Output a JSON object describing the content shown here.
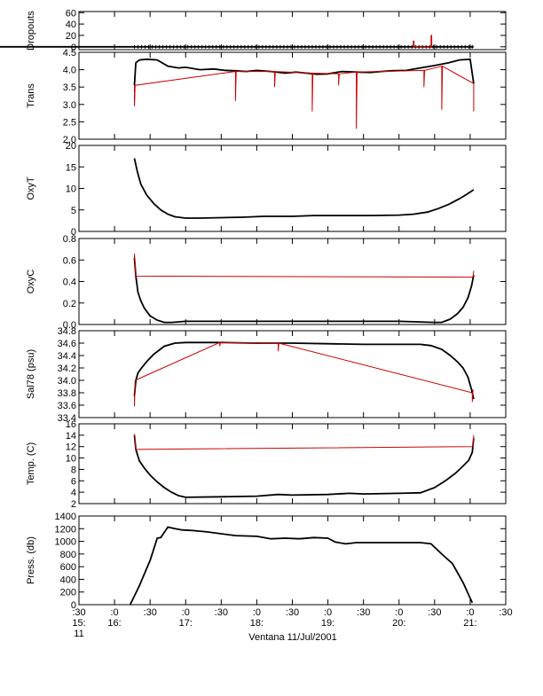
{
  "chart_data": [
    {
      "type": "line",
      "ylabel": "Dropouts",
      "ylim": [
        -5,
        62
      ],
      "yticks": [
        0,
        20,
        40,
        60
      ],
      "yticklabels": [
        "0",
        "20",
        "40",
        "60"
      ],
      "x_ticks_minor_ylim": [
        -6,
        6
      ],
      "series": [
        {
          "color": "#000000",
          "x": [
            13.2,
            21.05
          ],
          "y": [
            0,
            0
          ]
        },
        {
          "color": "#cc0000",
          "x": [
            20.2,
            20.2,
            20.21,
            20.21,
            20.45,
            20.45,
            20.46,
            20.46
          ],
          "y": [
            0,
            10,
            10,
            0,
            0,
            20,
            20,
            0
          ]
        }
      ]
    },
    {
      "type": "line",
      "ylabel": "Trans",
      "ylim": [
        2.0,
        4.5
      ],
      "yticks": [
        2.0,
        2.5,
        3.0,
        3.5,
        4.0,
        4.5
      ],
      "yticklabels": [
        "2.0",
        "2.5",
        "3.0",
        "3.5",
        "4.0",
        "4.5"
      ],
      "series": [
        {
          "color": "#000000",
          "x": [
            16.28,
            16.3,
            16.35,
            16.45,
            16.6,
            16.75,
            16.9,
            17.0,
            17.2,
            17.4,
            17.55,
            17.7,
            17.85,
            18.0,
            18.2,
            18.4,
            18.55,
            18.7,
            18.85,
            19.0,
            19.2,
            19.4,
            19.6,
            19.75,
            19.9,
            20.1,
            20.3,
            20.5,
            20.7,
            20.85,
            21.0,
            21.05
          ],
          "y": [
            3.55,
            4.2,
            4.28,
            4.3,
            4.28,
            4.1,
            4.05,
            4.07,
            4.0,
            4.02,
            3.98,
            3.97,
            3.95,
            3.98,
            3.95,
            3.9,
            3.93,
            3.9,
            3.87,
            3.88,
            3.95,
            3.93,
            3.92,
            3.95,
            3.97,
            3.98,
            4.05,
            4.12,
            4.2,
            4.28,
            4.3,
            3.6
          ]
        },
        {
          "color": "#cc0000",
          "x": [
            16.28,
            16.28,
            16.29,
            17.7,
            17.7,
            17.71,
            18.25,
            18.25,
            18.26,
            18.78,
            18.78,
            18.79,
            19.15,
            19.15,
            19.16,
            19.4,
            19.4,
            19.41,
            20.35,
            20.35,
            20.36,
            20.6,
            20.6,
            20.61,
            21.05,
            21.05
          ],
          "y": [
            3.55,
            2.95,
            3.55,
            3.95,
            3.1,
            3.95,
            3.95,
            3.5,
            3.95,
            3.9,
            2.8,
            3.9,
            3.88,
            3.55,
            3.88,
            3.93,
            2.3,
            3.93,
            3.98,
            3.5,
            3.98,
            4.1,
            2.85,
            4.1,
            3.6,
            2.8
          ]
        }
      ]
    },
    {
      "type": "line",
      "ylabel": "OxyT",
      "ylim": [
        0,
        20
      ],
      "yticks": [
        0,
        5,
        10,
        15,
        20
      ],
      "yticklabels": [
        "0",
        "5",
        "10",
        "15",
        "20"
      ],
      "series": [
        {
          "color": "#000000",
          "x": [
            16.28,
            16.32,
            16.37,
            16.45,
            16.55,
            16.65,
            16.75,
            16.85,
            17.0,
            17.2,
            17.5,
            17.8,
            18.1,
            18.5,
            18.8,
            19.2,
            19.6,
            20.0,
            20.2,
            20.4,
            20.55,
            20.7,
            20.85,
            20.95,
            21.05
          ],
          "y": [
            17.0,
            14.0,
            11.0,
            8.5,
            6.5,
            5.0,
            4.0,
            3.4,
            3.1,
            3.1,
            3.2,
            3.3,
            3.5,
            3.5,
            3.7,
            3.7,
            3.7,
            3.8,
            4.0,
            4.5,
            5.3,
            6.3,
            7.6,
            8.6,
            9.7
          ]
        }
      ]
    },
    {
      "type": "line",
      "ylabel": "OxyC",
      "ylim": [
        0.0,
        0.8
      ],
      "yticks": [
        0.0,
        0.2,
        0.4,
        0.6,
        0.8
      ],
      "yticklabels": [
        "0.0",
        "0.2",
        "0.4",
        "0.6",
        "0.8"
      ],
      "series": [
        {
          "color": "#000000",
          "x": [
            16.28,
            16.3,
            16.33,
            16.37,
            16.42,
            16.5,
            16.6,
            16.7,
            16.8,
            17.0,
            17.5,
            18.0,
            18.5,
            19.0,
            19.5,
            20.0,
            20.5,
            20.6,
            20.72,
            20.82,
            20.9,
            20.97,
            21.02,
            21.05
          ],
          "y": [
            0.62,
            0.45,
            0.3,
            0.22,
            0.15,
            0.08,
            0.04,
            0.02,
            0.02,
            0.03,
            0.03,
            0.03,
            0.03,
            0.03,
            0.03,
            0.03,
            0.02,
            0.02,
            0.05,
            0.1,
            0.16,
            0.25,
            0.36,
            0.46
          ]
        },
        {
          "color": "#cc0000",
          "x": [
            16.28,
            16.28,
            16.3,
            21.04,
            21.05
          ],
          "y": [
            0.62,
            0.66,
            0.45,
            0.44,
            0.5
          ]
        }
      ]
    },
    {
      "type": "line",
      "ylabel": "Sal78 (psu)",
      "ylim": [
        33.4,
        34.8
      ],
      "yticks": [
        33.4,
        33.6,
        33.8,
        34.0,
        34.2,
        34.4,
        34.6,
        34.8
      ],
      "yticklabels": [
        "33.4",
        "33.6",
        "33.8",
        "34.0",
        "34.2",
        "34.4",
        "34.6",
        "34.8"
      ],
      "series": [
        {
          "color": "#000000",
          "x": [
            16.28,
            16.3,
            16.33,
            16.38,
            16.45,
            16.55,
            16.7,
            16.85,
            17.0,
            17.5,
            18.0,
            18.5,
            19.0,
            19.5,
            20.0,
            20.3,
            20.45,
            20.6,
            20.72,
            20.82,
            20.9,
            20.97,
            21.02,
            21.05
          ],
          "y": [
            33.75,
            34.0,
            34.12,
            34.2,
            34.3,
            34.42,
            34.55,
            34.6,
            34.61,
            34.61,
            34.6,
            34.6,
            34.59,
            34.58,
            34.58,
            34.58,
            34.56,
            34.5,
            34.4,
            34.3,
            34.2,
            34.05,
            33.85,
            33.7
          ]
        },
        {
          "color": "#cc0000",
          "x": [
            16.28,
            16.28,
            16.29,
            17.48,
            17.48,
            17.49,
            18.3,
            18.3,
            18.31,
            21.03,
            21.03,
            21.04
          ],
          "y": [
            33.75,
            33.58,
            34.0,
            34.61,
            34.55,
            34.61,
            34.6,
            34.47,
            34.6,
            33.8,
            33.65,
            33.85
          ]
        }
      ]
    },
    {
      "type": "line",
      "ylabel": "Temp. (C)",
      "ylim": [
        2,
        16
      ],
      "yticks": [
        2,
        4,
        6,
        8,
        10,
        12,
        14,
        16
      ],
      "yticklabels": [
        "2",
        "4",
        "6",
        "8",
        "10",
        "12",
        "14",
        "16"
      ],
      "series": [
        {
          "color": "#000000",
          "x": [
            16.28,
            16.3,
            16.35,
            16.42,
            16.5,
            16.6,
            16.7,
            16.8,
            16.9,
            17.0,
            17.5,
            18.0,
            18.3,
            18.5,
            19.0,
            19.3,
            19.5,
            20.0,
            20.3,
            20.5,
            20.65,
            20.8,
            20.9,
            20.98,
            21.03,
            21.05
          ],
          "y": [
            14.0,
            11.5,
            9.5,
            8.2,
            7.0,
            5.8,
            4.8,
            4.0,
            3.4,
            3.1,
            3.2,
            3.3,
            3.6,
            3.5,
            3.6,
            3.8,
            3.7,
            3.8,
            3.9,
            4.8,
            6.0,
            7.4,
            8.6,
            9.6,
            11.0,
            13.5
          ]
        },
        {
          "color": "#cc0000",
          "x": [
            16.28,
            16.28,
            16.3,
            21.04,
            21.05
          ],
          "y": [
            14.0,
            14.2,
            11.5,
            12.0,
            14.0
          ]
        }
      ]
    },
    {
      "type": "line",
      "ylabel": "Press. (db)",
      "ylim": [
        0,
        1400
      ],
      "yticks": [
        0,
        200,
        400,
        600,
        800,
        1000,
        1200,
        1400
      ],
      "yticklabels": [
        "0",
        "200",
        "400",
        "600",
        "800",
        "1000",
        "1200",
        "1400"
      ],
      "series": [
        {
          "color": "#000000",
          "x": [
            16.22,
            16.35,
            16.5,
            16.6,
            16.65,
            16.75,
            16.85,
            16.95,
            17.1,
            17.3,
            17.5,
            17.7,
            18.0,
            18.2,
            18.4,
            18.6,
            18.8,
            19.0,
            19.1,
            19.25,
            19.4,
            19.7,
            20.0,
            20.3,
            20.45,
            20.6,
            20.75,
            20.9,
            21.03
          ],
          "y": [
            0,
            300,
            700,
            1050,
            1060,
            1225,
            1200,
            1180,
            1170,
            1150,
            1120,
            1090,
            1080,
            1040,
            1050,
            1040,
            1060,
            1050,
            990,
            960,
            980,
            980,
            980,
            980,
            960,
            800,
            650,
            350,
            30
          ]
        }
      ]
    }
  ],
  "x_axis": {
    "xlim": [
      15.5,
      21.5
    ],
    "major_ticks": [
      {
        "x": 15.5,
        "label1": ":30",
        "label2": "15:",
        "label3": "11"
      },
      {
        "x": 16.0,
        "label1": ":0",
        "label2": "16:",
        "label3": ""
      },
      {
        "x": 16.5,
        "label1": ":30",
        "label2": "",
        "label3": ""
      },
      {
        "x": 17.0,
        "label1": ":0",
        "label2": "17:",
        "label3": ""
      },
      {
        "x": 17.5,
        "label1": ":30",
        "label2": "",
        "label3": ""
      },
      {
        "x": 18.0,
        "label1": ":0",
        "label2": "18:",
        "label3": ""
      },
      {
        "x": 18.5,
        "label1": ":30",
        "label2": "",
        "label3": ""
      },
      {
        "x": 19.0,
        "label1": ":0",
        "label2": "19:",
        "label3": ""
      },
      {
        "x": 19.5,
        "label1": ":30",
        "label2": "",
        "label3": ""
      },
      {
        "x": 20.0,
        "label1": ":0",
        "label2": "20:",
        "label3": ""
      },
      {
        "x": 20.5,
        "label1": ":30",
        "label2": "",
        "label3": ""
      },
      {
        "x": 21.0,
        "label1": ":0",
        "label2": "21:",
        "label3": ""
      },
      {
        "x": 21.5,
        "label1": ":30",
        "label2": "",
        "label3": ""
      }
    ],
    "xlabel": "Ventana 11/Jul/2001"
  }
}
